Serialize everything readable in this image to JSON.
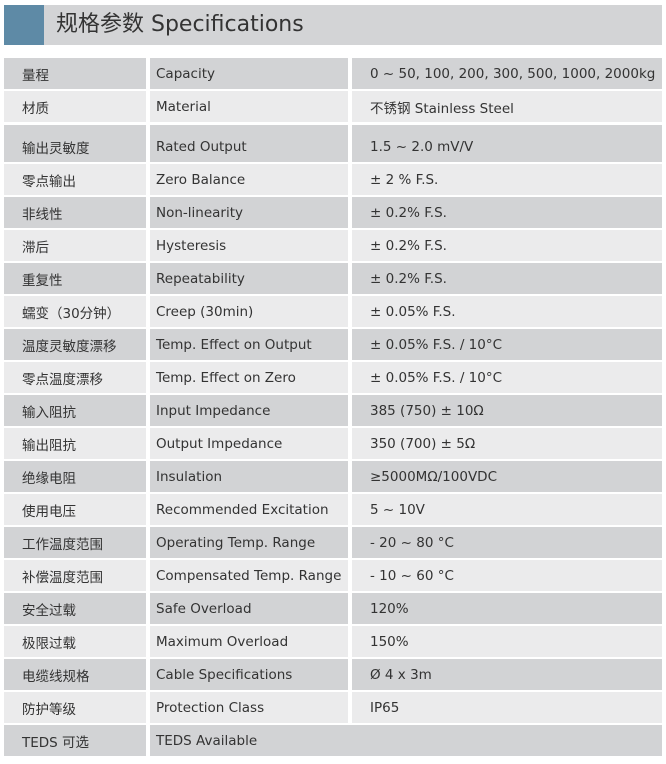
{
  "title": "规格参数 Specifications",
  "colors": {
    "accent": "#5e8aa6",
    "header_bg": "#d3d4d6",
    "row_dark": "#d2d3d5",
    "row_light": "#ebebec"
  },
  "rows": [
    {
      "cn": "量程",
      "en": "Capacity",
      "value": "0 ~ 50, 100, 200, 300, 500, 1000, 2000kg"
    },
    {
      "cn": "材质",
      "en": "Material",
      "value": "不锈钢 Stainless Steel"
    },
    {
      "cn": "输出灵敏度",
      "en": "Rated Output",
      "value": "1.5 ~ 2.0 mV/V"
    },
    {
      "cn": "零点输出",
      "en": "Zero Balance",
      "value": "± 2 % F.S."
    },
    {
      "cn": "非线性",
      "en": "Non-linearity",
      "value": "± 0.2% F.S."
    },
    {
      "cn": "滞后",
      "en": "Hysteresis",
      "value": "± 0.2% F.S."
    },
    {
      "cn": "重复性",
      "en": "Repeatability",
      "value": "± 0.2% F.S."
    },
    {
      "cn": "蠕变（30分钟）",
      "en": "Creep (30min)",
      "value": "± 0.05% F.S."
    },
    {
      "cn": "温度灵敏度漂移",
      "en": "Temp. Effect on Output",
      "value": "± 0.05% F.S. / 10°C"
    },
    {
      "cn": "零点温度漂移",
      "en": "Temp. Effect on Zero",
      "value": "± 0.05% F.S. / 10°C"
    },
    {
      "cn": "输入阻抗",
      "en": "Input Impedance",
      "value": "385 (750) ± 10Ω"
    },
    {
      "cn": "输出阻抗",
      "en": "Output Impedance",
      "value": "350 (700) ± 5Ω"
    },
    {
      "cn": "绝缘电阻",
      "en": "Insulation",
      "value": "≥5000MΩ/100VDC"
    },
    {
      "cn": "使用电压",
      "en": "Recommended Excitation",
      "value": "5 ~ 10V"
    },
    {
      "cn": "工作温度范围",
      "en": "Operating Temp. Range",
      "value": "- 20 ~ 80 °C"
    },
    {
      "cn": "补偿温度范围",
      "en": "Compensated Temp. Range",
      "value": "- 10 ~ 60 °C"
    },
    {
      "cn": "安全过载",
      "en": "Safe Overload",
      "value": "120%"
    },
    {
      "cn": "极限过载",
      "en": "Maximum Overload",
      "value": "150%"
    },
    {
      "cn": "电缆线规格",
      "en": "Cable Specifications",
      "value": "Ø 4 x 3m"
    },
    {
      "cn": "防护等级",
      "en": "Protection Class",
      "value": "IP65"
    },
    {
      "cn": "TEDS 可选",
      "en": "TEDS Available"
    }
  ]
}
